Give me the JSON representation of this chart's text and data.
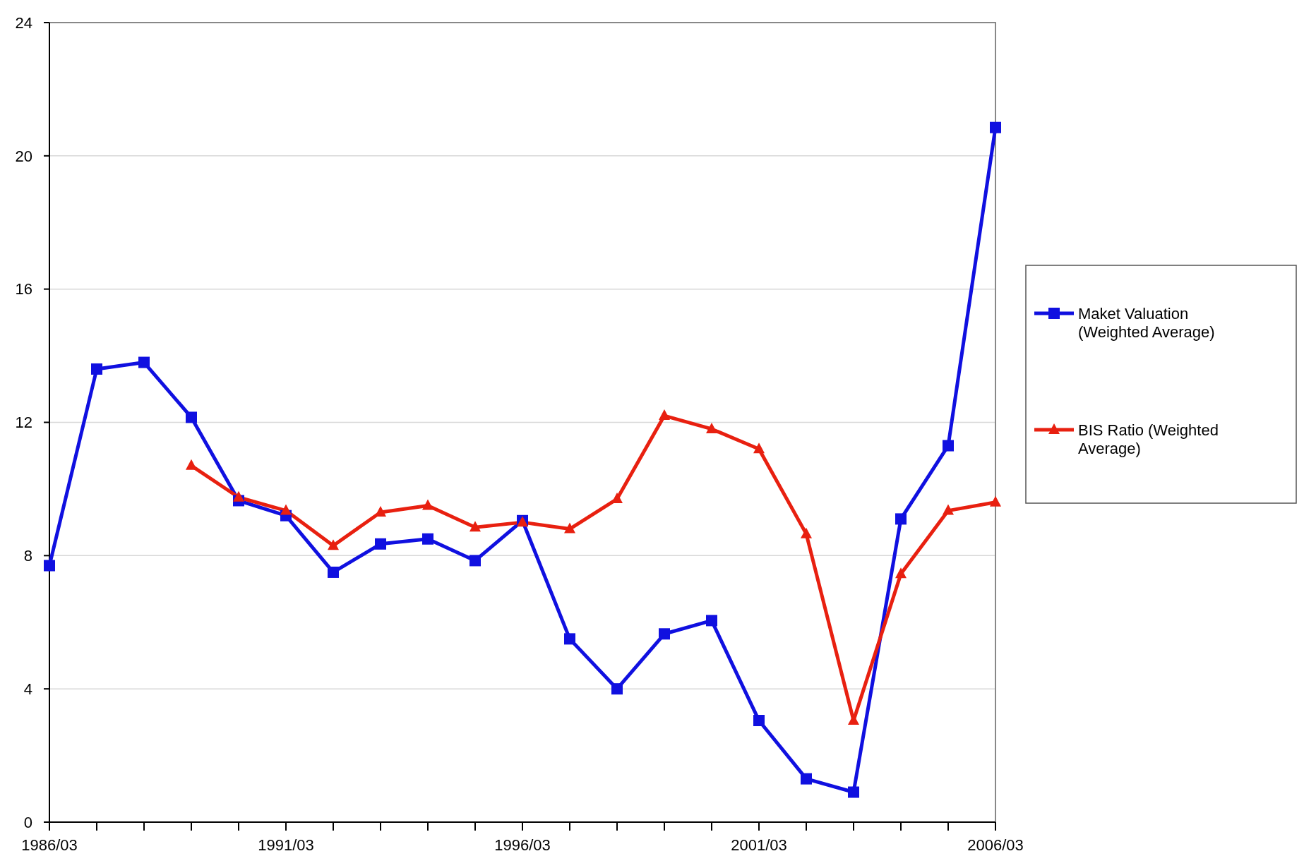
{
  "chart_data": {
    "type": "line",
    "categories": [
      "1986/03",
      null,
      null,
      null,
      null,
      "1991/03",
      null,
      null,
      null,
      null,
      "1996/03",
      null,
      null,
      null,
      null,
      "2001/03",
      null,
      null,
      null,
      null,
      "2006/03"
    ],
    "series": [
      {
        "name": "Maket Valuation (Weighted Average)",
        "color": "#1010e0",
        "marker": "square",
        "values": [
          7.7,
          13.6,
          13.8,
          12.15,
          9.65,
          9.2,
          7.5,
          8.35,
          8.5,
          7.85,
          9.05,
          5.5,
          4.0,
          5.65,
          6.05,
          3.05,
          1.3,
          0.9,
          9.1,
          11.3,
          20.85
        ]
      },
      {
        "name": "BIS Ratio (Weighted Average)",
        "color": "#e82010",
        "marker": "triangle",
        "values": [
          null,
          null,
          null,
          10.7,
          9.75,
          9.35,
          8.3,
          9.3,
          9.5,
          8.85,
          9.0,
          8.8,
          9.7,
          12.2,
          11.8,
          11.2,
          8.65,
          3.05,
          7.45,
          9.35,
          9.6
        ]
      }
    ],
    "ylim": [
      0,
      24
    ],
    "yticks": [
      0,
      4,
      8,
      12,
      16,
      20,
      24
    ],
    "grid": "y",
    "legend": "right"
  }
}
